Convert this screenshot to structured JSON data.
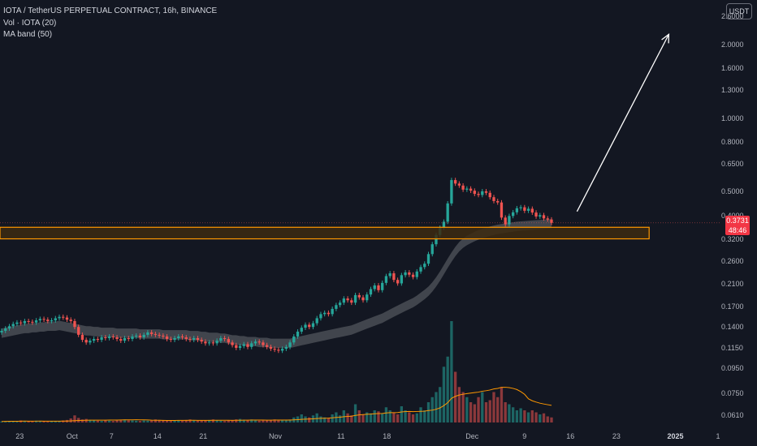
{
  "legend": {
    "symbol": "IOTA / TetherUS PERPETUAL CONTRACT, 16h, BINANCE",
    "volume": "Vol · IOTA (20)",
    "ma_band": "MA band (50)"
  },
  "currency_button": "USDT",
  "price_label": {
    "value": "0.3731",
    "countdown": "48:46"
  },
  "colors": {
    "background": "#131722",
    "up": "#26a69a",
    "down": "#ef5350",
    "zone_border": "#ff9800",
    "zone_fill": "#3d2a10",
    "ma_band": "#4a4d55",
    "volume_ma": "#ff9800",
    "arrow": "#ffffff",
    "price_tag": "#f23645"
  },
  "chart_data": {
    "type": "candlestick",
    "y_scale": "log",
    "ylim": [
      0.054,
      3.04
    ],
    "y_tick_labels": [
      "2.6000",
      "2.0000",
      "1.6000",
      "1.3000",
      "1.0000",
      "0.8000",
      "0.6500",
      "0.5000",
      "0.4000",
      "0.3200",
      "0.2600",
      "0.2100",
      "0.1700",
      "0.1400",
      "0.1150",
      "0.0950",
      "0.0750",
      "0.0610"
    ],
    "x_tick_labels": [
      "23",
      "Oct",
      "7",
      "14",
      "21",
      "Nov",
      "11",
      "18",
      "Dec",
      "9",
      "16",
      "23",
      "2025",
      "1"
    ],
    "x_range": [
      "2024-09-20",
      "2025-01-08"
    ],
    "closes": [
      0.135,
      0.138,
      0.141,
      0.144,
      0.146,
      0.145,
      0.148,
      0.147,
      0.146,
      0.149,
      0.151,
      0.15,
      0.148,
      0.149,
      0.152,
      0.154,
      0.153,
      0.15,
      0.148,
      0.14,
      0.13,
      0.124,
      0.121,
      0.123,
      0.125,
      0.124,
      0.127,
      0.126,
      0.128,
      0.127,
      0.125,
      0.123,
      0.126,
      0.125,
      0.128,
      0.129,
      0.127,
      0.13,
      0.133,
      0.131,
      0.13,
      0.129,
      0.128,
      0.125,
      0.124,
      0.126,
      0.128,
      0.127,
      0.125,
      0.124,
      0.126,
      0.124,
      0.122,
      0.12,
      0.121,
      0.12,
      0.123,
      0.126,
      0.125,
      0.121,
      0.118,
      0.115,
      0.117,
      0.119,
      0.116,
      0.12,
      0.122,
      0.121,
      0.118,
      0.116,
      0.114,
      0.113,
      0.112,
      0.114,
      0.116,
      0.121,
      0.128,
      0.134,
      0.139,
      0.143,
      0.14,
      0.145,
      0.152,
      0.158,
      0.16,
      0.158,
      0.166,
      0.172,
      0.176,
      0.183,
      0.18,
      0.176,
      0.189,
      0.185,
      0.18,
      0.19,
      0.2,
      0.207,
      0.198,
      0.212,
      0.226,
      0.232,
      0.218,
      0.211,
      0.228,
      0.234,
      0.229,
      0.224,
      0.236,
      0.246,
      0.254,
      0.278,
      0.305,
      0.333,
      0.356,
      0.377,
      0.448,
      0.558,
      0.54,
      0.53,
      0.51,
      0.515,
      0.505,
      0.49,
      0.485,
      0.502,
      0.495,
      0.475,
      0.458,
      0.452,
      0.392,
      0.368,
      0.398,
      0.412,
      0.428,
      0.432,
      0.418,
      0.426,
      0.411,
      0.396,
      0.401,
      0.389,
      0.385,
      0.373
    ],
    "band_mid": [
      0.132,
      0.133,
      0.134,
      0.135,
      0.136,
      0.137,
      0.138,
      0.138,
      0.139,
      0.139,
      0.14,
      0.14,
      0.141,
      0.141,
      0.141,
      0.142,
      0.141,
      0.14,
      0.139,
      0.138,
      0.137,
      0.136,
      0.135,
      0.135,
      0.134,
      0.134,
      0.133,
      0.133,
      0.133,
      0.133,
      0.132,
      0.132,
      0.132,
      0.132,
      0.132,
      0.132,
      0.131,
      0.131,
      0.131,
      0.131,
      0.131,
      0.131,
      0.13,
      0.13,
      0.13,
      0.13,
      0.13,
      0.13,
      0.13,
      0.129,
      0.129,
      0.129,
      0.128,
      0.128,
      0.127,
      0.127,
      0.127,
      0.126,
      0.126,
      0.125,
      0.124,
      0.124,
      0.123,
      0.123,
      0.122,
      0.122,
      0.122,
      0.121,
      0.121,
      0.121,
      0.12,
      0.12,
      0.12,
      0.12,
      0.12,
      0.12,
      0.121,
      0.122,
      0.123,
      0.124,
      0.125,
      0.126,
      0.127,
      0.128,
      0.129,
      0.13,
      0.131,
      0.132,
      0.133,
      0.134,
      0.135,
      0.136,
      0.138,
      0.14,
      0.142,
      0.144,
      0.146,
      0.148,
      0.15,
      0.152,
      0.155,
      0.158,
      0.161,
      0.164,
      0.167,
      0.17,
      0.173,
      0.176,
      0.18,
      0.185,
      0.19,
      0.196,
      0.204,
      0.214,
      0.226,
      0.24,
      0.255,
      0.27,
      0.285,
      0.298,
      0.308,
      0.316,
      0.322,
      0.328,
      0.333,
      0.337,
      0.341,
      0.345,
      0.348,
      0.351,
      0.353,
      0.355,
      0.357,
      0.359,
      0.361,
      0.362,
      0.363,
      0.364,
      0.365,
      0.366,
      0.367,
      0.368,
      0.369,
      0.37
    ],
    "volume_level": [
      0.01,
      0.012,
      0.015,
      0.013,
      0.01,
      0.02,
      0.015,
      0.012,
      0.01,
      0.018,
      0.015,
      0.012,
      0.01,
      0.014,
      0.012,
      0.016,
      0.02,
      0.025,
      0.04,
      0.07,
      0.045,
      0.03,
      0.035,
      0.025,
      0.02,
      0.018,
      0.015,
      0.02,
      0.018,
      0.015,
      0.02,
      0.025,
      0.03,
      0.022,
      0.02,
      0.018,
      0.015,
      0.02,
      0.018,
      0.022,
      0.03,
      0.025,
      0.02,
      0.018,
      0.015,
      0.02,
      0.022,
      0.018,
      0.025,
      0.03,
      0.02,
      0.018,
      0.022,
      0.02,
      0.025,
      0.03,
      0.02,
      0.018,
      0.015,
      0.02,
      0.025,
      0.03,
      0.035,
      0.028,
      0.025,
      0.03,
      0.02,
      0.018,
      0.022,
      0.02,
      0.025,
      0.03,
      0.028,
      0.025,
      0.02,
      0.03,
      0.05,
      0.06,
      0.08,
      0.06,
      0.05,
      0.07,
      0.09,
      0.06,
      0.05,
      0.045,
      0.08,
      0.1,
      0.07,
      0.12,
      0.09,
      0.07,
      0.18,
      0.12,
      0.08,
      0.1,
      0.09,
      0.12,
      0.11,
      0.09,
      0.15,
      0.12,
      0.1,
      0.08,
      0.16,
      0.12,
      0.1,
      0.08,
      0.09,
      0.15,
      0.12,
      0.2,
      0.25,
      0.3,
      0.35,
      0.55,
      0.65,
      1.0,
      0.5,
      0.35,
      0.3,
      0.25,
      0.2,
      0.18,
      0.25,
      0.3,
      0.2,
      0.22,
      0.3,
      0.25,
      0.35,
      0.2,
      0.18,
      0.15,
      0.12,
      0.14,
      0.12,
      0.1,
      0.12,
      0.1,
      0.08,
      0.09,
      0.06,
      0.05
    ],
    "annotations": [
      {
        "type": "zone",
        "y_low": 0.3209,
        "y_high": 0.3578,
        "x_start": "2024-09-20",
        "x_end": "2024-12-28"
      },
      {
        "type": "arrow",
        "from": [
          "2024-12-17",
          0.415
        ],
        "to": [
          "2024-12-31",
          2.2
        ]
      }
    ],
    "last_price": 0.3731
  }
}
